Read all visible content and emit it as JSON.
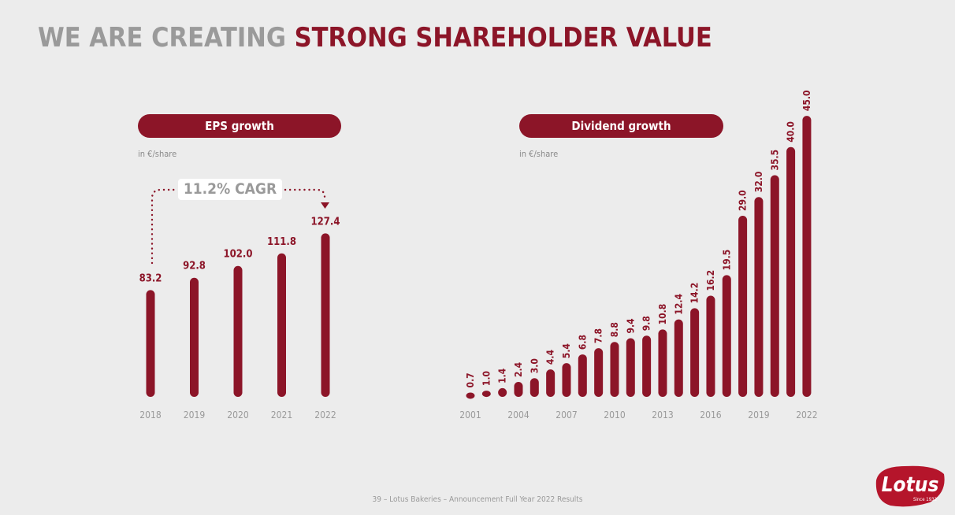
{
  "title": {
    "part1": "WE ARE CREATING ",
    "part2": "STRONG SHAREHOLDER VALUE"
  },
  "colors": {
    "accent": "#8c1528",
    "grey_text": "#9a9a9a",
    "background": "#ececec"
  },
  "chart_data": [
    {
      "type": "bar",
      "title": "EPS growth",
      "unit_label": "in €/share",
      "annotation": "11.2% CAGR",
      "categories": [
        "2018",
        "2019",
        "2020",
        "2021",
        "2022"
      ],
      "values": [
        83.2,
        92.8,
        102.0,
        111.8,
        127.4
      ],
      "value_labels": [
        "83.2",
        "92.8",
        "102.0",
        "111.8",
        "127.4"
      ]
    },
    {
      "type": "bar",
      "title": "Dividend growth",
      "unit_label": "in €/share",
      "categories": [
        "2001",
        "2002",
        "2003",
        "2004",
        "2005",
        "2006",
        "2007",
        "2008",
        "2009",
        "2010",
        "2011",
        "2012",
        "2013",
        "2014",
        "2015",
        "2016",
        "2017",
        "2018",
        "2019",
        "2020",
        "2021",
        "2022"
      ],
      "x_tick_labels": [
        "2001",
        "2004",
        "2007",
        "2010",
        "2013",
        "2016",
        "2019",
        "2022"
      ],
      "values": [
        0.7,
        1.0,
        1.4,
        2.4,
        3.0,
        4.4,
        5.4,
        6.8,
        7.8,
        8.8,
        9.4,
        9.8,
        10.8,
        12.4,
        14.2,
        16.2,
        19.5,
        29.0,
        32.0,
        35.5,
        40.0,
        45.0
      ],
      "value_labels": [
        "0.7",
        "1.0",
        "1.4",
        "2.4",
        "3.0",
        "4.4",
        "5.4",
        "6.8",
        "7.8",
        "8.8",
        "9.4",
        "9.8",
        "10.8",
        "12.4",
        "14.2",
        "16.2",
        "19.5",
        "29.0",
        "32.0",
        "35.5",
        "40.0",
        "45.0"
      ]
    }
  ],
  "footer": "39 – Lotus Bakeries – Announcement Full Year 2022 Results",
  "logo": {
    "name": "Lotus",
    "tagline": "Since 1932"
  }
}
